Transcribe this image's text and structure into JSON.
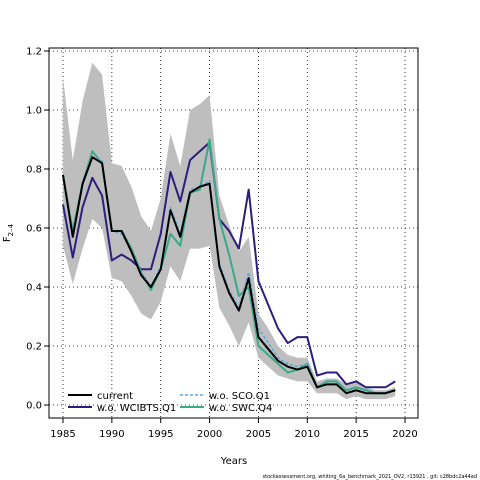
{
  "chart_data": {
    "type": "line",
    "xlabel": "Years",
    "ylabel": "F",
    "ylabel_sub": "2–4",
    "xlim": [
      1983.5,
      2021
    ],
    "ylim": [
      -0.04,
      1.2
    ],
    "xticks": [
      1985,
      1990,
      1995,
      2000,
      2005,
      2010,
      2015,
      2020
    ],
    "yticks": [
      0.0,
      0.2,
      0.4,
      0.6,
      0.8,
      1.0,
      1.2
    ],
    "grid": true,
    "legend_position": "bottom-left",
    "band": {
      "color": "#bebebe",
      "x": [
        1985,
        1986,
        1987,
        1988,
        1989,
        1990,
        1991,
        1992,
        1993,
        1994,
        1995,
        1996,
        1997,
        1998,
        1999,
        2000,
        2001,
        2002,
        2003,
        2004,
        2005,
        2006,
        2007,
        2008,
        2009,
        2010,
        2011,
        2012,
        2013,
        2014,
        2015,
        2016,
        2017,
        2018,
        2019
      ],
      "upper": [
        1.11,
        0.83,
        1.03,
        1.16,
        1.12,
        0.82,
        0.81,
        0.74,
        0.64,
        0.59,
        0.7,
        0.92,
        0.81,
        1.0,
        1.02,
        1.05,
        0.71,
        0.61,
        0.52,
        0.57,
        0.31,
        0.26,
        0.2,
        0.17,
        0.16,
        0.16,
        0.08,
        0.09,
        0.09,
        0.07,
        0.08,
        0.06,
        0.05,
        0.05,
        0.06
      ],
      "lower": [
        0.54,
        0.41,
        0.53,
        0.63,
        0.6,
        0.43,
        0.42,
        0.37,
        0.31,
        0.29,
        0.35,
        0.47,
        0.42,
        0.53,
        0.53,
        0.54,
        0.33,
        0.27,
        0.2,
        0.28,
        0.16,
        0.13,
        0.1,
        0.09,
        0.08,
        0.08,
        0.04,
        0.04,
        0.04,
        0.02,
        0.03,
        0.02,
        0.02,
        0.02,
        0.03
      ]
    },
    "x": [
      1985,
      1986,
      1987,
      1988,
      1989,
      1990,
      1991,
      1992,
      1993,
      1994,
      1995,
      1996,
      1997,
      1998,
      1999,
      2000,
      2001,
      2002,
      2003,
      2004,
      2005,
      2006,
      2007,
      2008,
      2009,
      2010,
      2011,
      2012,
      2013,
      2014,
      2015,
      2016,
      2017,
      2018,
      2019
    ],
    "series": [
      {
        "name": "current",
        "color": "#000000",
        "dash": "",
        "width": 2,
        "values": [
          0.78,
          0.57,
          0.75,
          0.84,
          0.82,
          0.59,
          0.59,
          0.52,
          0.44,
          0.4,
          0.46,
          0.66,
          0.57,
          0.72,
          0.74,
          0.75,
          0.47,
          0.38,
          0.32,
          0.43,
          0.23,
          0.19,
          0.15,
          0.13,
          0.12,
          0.13,
          0.06,
          0.07,
          0.07,
          0.04,
          0.05,
          0.04,
          0.04,
          0.04,
          0.05
        ]
      },
      {
        "name": "w.o. WCIBTS.Q1",
        "color": "#2d1e7e",
        "dash": "",
        "width": 2,
        "values": [
          0.68,
          0.5,
          0.67,
          0.77,
          0.71,
          0.49,
          0.51,
          0.49,
          0.46,
          0.46,
          0.58,
          0.79,
          0.69,
          0.83,
          0.86,
          0.89,
          0.63,
          0.59,
          0.53,
          0.73,
          0.42,
          0.34,
          0.26,
          0.21,
          0.23,
          0.23,
          0.1,
          0.11,
          0.11,
          0.07,
          0.08,
          0.06,
          0.06,
          0.06,
          0.08
        ]
      },
      {
        "name": "w.o. SCO.Q1",
        "color": "#5aa8e0",
        "dash": "3,2",
        "width": 1.5,
        "values": [
          0.78,
          0.57,
          0.74,
          0.84,
          0.83,
          0.59,
          0.58,
          0.52,
          0.45,
          0.4,
          0.47,
          0.67,
          0.58,
          0.73,
          0.74,
          0.76,
          0.48,
          0.39,
          0.33,
          0.45,
          0.26,
          0.21,
          0.16,
          0.14,
          0.13,
          0.14,
          0.06,
          0.07,
          0.07,
          0.04,
          0.05,
          0.04,
          0.04,
          0.04,
          0.05
        ]
      },
      {
        "name": "w.o. SWC.Q4",
        "color": "#3aa98a",
        "dash": "",
        "width": 2,
        "values": [
          0.78,
          0.59,
          0.75,
          0.86,
          0.82,
          0.59,
          0.59,
          0.53,
          0.45,
          0.39,
          0.46,
          0.58,
          0.54,
          0.72,
          0.73,
          0.9,
          0.63,
          0.51,
          0.37,
          0.4,
          0.2,
          0.17,
          0.14,
          0.11,
          0.12,
          0.14,
          0.06,
          0.08,
          0.08,
          0.05,
          0.06,
          0.05,
          0.04,
          0.04,
          0.05
        ]
      }
    ]
  },
  "footer": "stockassessment.org, whiting_6a_benchmark_2021_OV2, r13921 , git: c28bdc2a44ad"
}
